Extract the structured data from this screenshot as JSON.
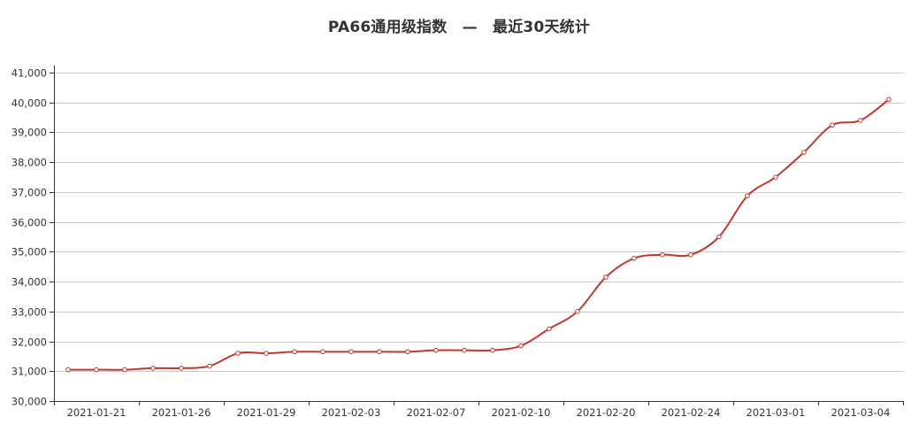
{
  "chart_data": {
    "type": "line",
    "title": "PA66通用级指数　—　最近30天统计",
    "xlabel": "",
    "ylabel": "",
    "ylim": [
      30000,
      41000
    ],
    "y_ticks": [
      30000,
      31000,
      32000,
      33000,
      34000,
      35000,
      36000,
      37000,
      38000,
      39000,
      40000,
      41000
    ],
    "y_tick_labels": [
      "30,000",
      "31,000",
      "32,000",
      "33,000",
      "34,000",
      "35,000",
      "36,000",
      "37,000",
      "38,000",
      "39,000",
      "40,000",
      "41,000"
    ],
    "x_tick_labels": [
      "2021-01-21",
      "2021-01-26",
      "2021-01-29",
      "2021-02-03",
      "2021-02-07",
      "2021-02-10",
      "2021-02-20",
      "2021-02-24",
      "2021-03-01",
      "2021-03-04"
    ],
    "grid": true,
    "legend": "none",
    "colors": {
      "line": "#c0392b",
      "marker_fill": "#ffffff",
      "grid": "#cccccc",
      "axis": "#333333"
    },
    "series": [
      {
        "values": [
          31050,
          31050,
          31050,
          31100,
          31100,
          31170,
          31600,
          31600,
          31650,
          31650,
          31650,
          31650,
          31650,
          31700,
          31700,
          31700,
          31850,
          32420,
          33000,
          34150,
          34780,
          34900,
          34900,
          35500,
          36870,
          37500,
          38330,
          39240,
          39400,
          40100
        ]
      }
    ]
  }
}
